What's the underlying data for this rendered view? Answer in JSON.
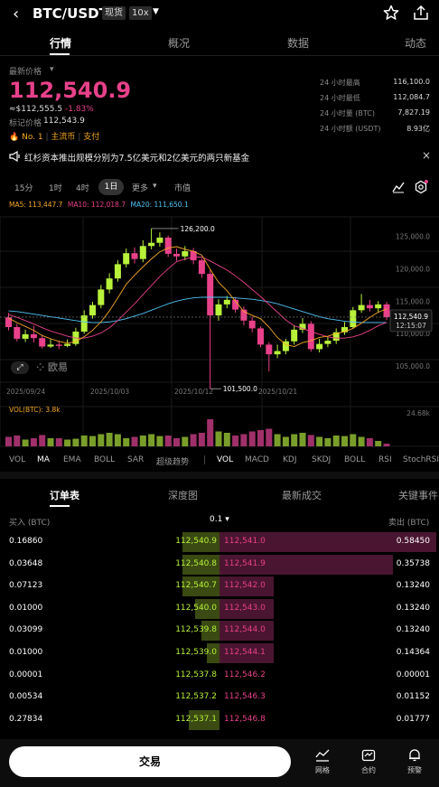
{
  "header": {
    "pair": "BTC/USDT",
    "spot_badge": "现货",
    "leverage_badge": "10x"
  },
  "tabs": [
    "行情",
    "概况",
    "数据",
    "动态"
  ],
  "price": {
    "label": "最新价格",
    "last": "112,540.9",
    "usd": "≈$112,555.5",
    "change": "-1.83%",
    "mark_label": "标记价格",
    "mark": "112,543.9",
    "tags": [
      "No. 1",
      "主流币",
      "支付"
    ]
  },
  "stats": [
    {
      "label": "24 小时最高",
      "value": "116,100.0"
    },
    {
      "label": "24 小时最低",
      "value": "112,084.7"
    },
    {
      "label": "24 小时量 (BTC)",
      "value": "7,827.19"
    },
    {
      "label": "24 小时额 (USDT)",
      "value": "8.93亿"
    }
  ],
  "news": "红杉资本推出规模分别为7.5亿美元和2亿美元的两只新基金",
  "timeframes": [
    "15分",
    "1时",
    "4时",
    "1日",
    "更多",
    "市值"
  ],
  "active_timeframe": "1日",
  "ma_line": {
    "ma5": "MA5: 113,447.7",
    "ma10": "MA10: 112,018.7",
    "ma20": "MA20: 111,650.1"
  },
  "chart_data": {
    "type": "candlestick",
    "y_ticks": [
      "125,000.0",
      "120,000.0",
      "115,000.0",
      "110,000.0",
      "105,000.0"
    ],
    "ylim": [
      102500,
      128000
    ],
    "x_ticks": [
      "2025/09/24",
      "2025/10/03",
      "2025/10/12",
      "2025/10/21"
    ],
    "high_annotation": "126,200.0",
    "low_annotation": "101,500.0",
    "current_price_tag": "112,540.9",
    "countdown": "12:15:07",
    "candles": [
      {
        "o": 112500,
        "c": 111000,
        "h": 113200,
        "l": 110500
      },
      {
        "o": 111000,
        "c": 109200,
        "h": 111500,
        "l": 108800
      },
      {
        "o": 109200,
        "c": 109900,
        "h": 110600,
        "l": 108700
      },
      {
        "o": 109900,
        "c": 109300,
        "h": 111200,
        "l": 108600
      },
      {
        "o": 109300,
        "c": 108000,
        "h": 109800,
        "l": 107700
      },
      {
        "o": 108000,
        "c": 108300,
        "h": 109100,
        "l": 107800
      },
      {
        "o": 108300,
        "c": 108100,
        "h": 108900,
        "l": 107600
      },
      {
        "o": 108100,
        "c": 108400,
        "h": 109100,
        "l": 107900
      },
      {
        "o": 108400,
        "c": 110300,
        "h": 110900,
        "l": 108100
      },
      {
        "o": 110300,
        "c": 112800,
        "h": 113600,
        "l": 110000
      },
      {
        "o": 112800,
        "c": 114400,
        "h": 114900,
        "l": 112300
      },
      {
        "o": 114400,
        "c": 116800,
        "h": 117500,
        "l": 113900
      },
      {
        "o": 116800,
        "c": 118500,
        "h": 119300,
        "l": 116200
      },
      {
        "o": 118500,
        "c": 120700,
        "h": 121300,
        "l": 118000
      },
      {
        "o": 120700,
        "c": 122400,
        "h": 123100,
        "l": 120200
      },
      {
        "o": 122400,
        "c": 121500,
        "h": 123300,
        "l": 120800
      },
      {
        "o": 121500,
        "c": 123500,
        "h": 124400,
        "l": 121000
      },
      {
        "o": 123500,
        "c": 124000,
        "h": 126200,
        "l": 123000
      },
      {
        "o": 124000,
        "c": 124800,
        "h": 125600,
        "l": 123400
      },
      {
        "o": 124800,
        "c": 122300,
        "h": 125100,
        "l": 121800
      },
      {
        "o": 122300,
        "c": 121900,
        "h": 123100,
        "l": 121200
      },
      {
        "o": 121900,
        "c": 122700,
        "h": 123500,
        "l": 121300
      },
      {
        "o": 122700,
        "c": 121300,
        "h": 123200,
        "l": 120700
      },
      {
        "o": 121300,
        "c": 119200,
        "h": 121600,
        "l": 118600
      },
      {
        "o": 119200,
        "c": 112800,
        "h": 119800,
        "l": 101500
      },
      {
        "o": 112800,
        "c": 114500,
        "h": 115300,
        "l": 112000
      },
      {
        "o": 114500,
        "c": 115200,
        "h": 115800,
        "l": 113900
      },
      {
        "o": 115200,
        "c": 113700,
        "h": 115600,
        "l": 113200
      },
      {
        "o": 113700,
        "c": 112000,
        "h": 114200,
        "l": 111300
      },
      {
        "o": 112000,
        "c": 110800,
        "h": 112600,
        "l": 110200
      },
      {
        "o": 110800,
        "c": 108300,
        "h": 111100,
        "l": 107900
      },
      {
        "o": 108300,
        "c": 106800,
        "h": 108700,
        "l": 104200
      },
      {
        "o": 106800,
        "c": 107300,
        "h": 108300,
        "l": 106200
      },
      {
        "o": 107300,
        "c": 108800,
        "h": 109200,
        "l": 106800
      },
      {
        "o": 108800,
        "c": 110600,
        "h": 111300,
        "l": 108300
      },
      {
        "o": 110600,
        "c": 111500,
        "h": 112400,
        "l": 110100
      },
      {
        "o": 111500,
        "c": 107600,
        "h": 111900,
        "l": 107200
      },
      {
        "o": 107600,
        "c": 108400,
        "h": 109200,
        "l": 107100
      },
      {
        "o": 108400,
        "c": 108900,
        "h": 109600,
        "l": 107900
      },
      {
        "o": 108900,
        "c": 110200,
        "h": 110800,
        "l": 108400
      },
      {
        "o": 110200,
        "c": 111000,
        "h": 111800,
        "l": 109800
      },
      {
        "o": 111000,
        "c": 113600,
        "h": 114100,
        "l": 110700
      },
      {
        "o": 113600,
        "c": 114400,
        "h": 116100,
        "l": 113200
      },
      {
        "o": 114400,
        "c": 113900,
        "h": 115200,
        "l": 113400
      },
      {
        "o": 113900,
        "c": 114500,
        "h": 115000,
        "l": 113200
      },
      {
        "o": 114500,
        "c": 112540,
        "h": 114900,
        "l": 112084
      }
    ],
    "ma5": [
      112400,
      111700,
      111100,
      110500,
      109700,
      109200,
      108800,
      108500,
      108800,
      109500,
      110500,
      111800,
      113500,
      115500,
      117600,
      119000,
      120300,
      121500,
      122600,
      123200,
      123400,
      123000,
      122700,
      122100,
      119900,
      117900,
      116600,
      115000,
      113400,
      112800,
      112300,
      111000,
      109400,
      108300,
      108000,
      108600,
      108900,
      109400,
      109600,
      110000,
      110300,
      110800,
      111600,
      112500,
      113300,
      113800
    ],
    "ma10": [
      112900,
      112500,
      112000,
      111500,
      110900,
      110400,
      110000,
      109600,
      109300,
      109300,
      109600,
      110100,
      110900,
      112000,
      113300,
      114600,
      116000,
      117400,
      118800,
      120000,
      121100,
      121500,
      121800,
      121800,
      121200,
      120500,
      119800,
      118900,
      117900,
      116800,
      115700,
      114500,
      113300,
      112100,
      111200,
      110800,
      110300,
      109900,
      109500,
      109300,
      109300,
      109500,
      109900,
      110500,
      111200,
      111700
    ],
    "ma20": [
      113500,
      113400,
      113200,
      113000,
      112800,
      112600,
      112400,
      112200,
      112000,
      111800,
      111700,
      111700,
      111800,
      112000,
      112300,
      112700,
      113100,
      113600,
      114100,
      114600,
      115000,
      115300,
      115500,
      115600,
      115600,
      115600,
      115600,
      115500,
      115400,
      115300,
      115100,
      114900,
      114600,
      114200,
      113800,
      113400,
      113000,
      112600,
      112300,
      112100,
      111900,
      111800,
      111700,
      111700,
      111700,
      111700
    ],
    "vol_label": "VOL(BTC): 3.8k",
    "vol_tick": "24.68k",
    "volume": [
      0.35,
      0.4,
      0.25,
      0.3,
      0.42,
      0.3,
      0.3,
      0.25,
      0.28,
      0.4,
      0.38,
      0.45,
      0.5,
      0.45,
      0.3,
      0.35,
      0.4,
      0.45,
      0.38,
      0.4,
      0.3,
      0.35,
      0.45,
      0.5,
      1.0,
      0.55,
      0.5,
      0.4,
      0.45,
      0.55,
      0.6,
      0.65,
      0.45,
      0.35,
      0.45,
      0.5,
      0.42,
      0.35,
      0.3,
      0.4,
      0.38,
      0.45,
      0.35,
      0.3,
      0.2,
      0.1
    ]
  },
  "indicator_tabs_main": [
    "VOL",
    "MA",
    "EMA",
    "BOLL",
    "SAR",
    "超级趋势"
  ],
  "indicator_tabs_sub": [
    "VOL",
    "MACD",
    "KDJ",
    "SKDJ",
    "BOLL",
    "RSI",
    "StochRSI"
  ],
  "watermark": "欧易",
  "orderbook": {
    "tabs": [
      "订单表",
      "深度图",
      "最新成交",
      "关键事件"
    ],
    "buy_label": "买入 (BTC)",
    "sell_label": "卖出 (BTC)",
    "precision": "0.1",
    "rows": [
      {
        "bq": "0.16860",
        "bp": "112,540.9",
        "sp": "112,541.0",
        "sq": "0.58450",
        "bd": 0.6,
        "sd": 1.0
      },
      {
        "bq": "0.03648",
        "bp": "112,540.8",
        "sp": "112,541.9",
        "sq": "0.35738",
        "bd": 0.6,
        "sd": 0.8
      },
      {
        "bq": "0.07123",
        "bp": "112,540.7",
        "sp": "112,542.0",
        "sq": "0.13240",
        "bd": 0.6,
        "sd": 0.25
      },
      {
        "bq": "0.01000",
        "bp": "112,540.0",
        "sp": "112,543.0",
        "sq": "0.13240",
        "bd": 0.4,
        "sd": 0.25
      },
      {
        "bq": "0.03099",
        "bp": "112,539.8",
        "sp": "112,544.0",
        "sq": "0.13240",
        "bd": 0.3,
        "sd": 0.25
      },
      {
        "bq": "0.01000",
        "bp": "112,539.0",
        "sp": "112,544.1",
        "sq": "0.14364",
        "bd": 0.2,
        "sd": 0.25
      },
      {
        "bq": "0.00001",
        "bp": "112,537.8",
        "sp": "112,546.2",
        "sq": "0.00001",
        "bd": 0.0,
        "sd": 0.0
      },
      {
        "bq": "0.00534",
        "bp": "112,537.2",
        "sp": "112,546.3",
        "sq": "0.01152",
        "bd": 0.0,
        "sd": 0.0
      },
      {
        "bq": "0.27834",
        "bp": "112,537.1",
        "sp": "112,546.8",
        "sq": "0.01777",
        "bd": 0.5,
        "sd": 0.0
      }
    ]
  },
  "bottom": {
    "trade": "交易",
    "grid": "网格",
    "contract": "合约",
    "alert": "预警"
  },
  "colors": {
    "up": "#b8f23a",
    "down": "#e8418a",
    "ma5": "#f5a623",
    "ma10": "#e8418a",
    "ma20": "#4fc3f7"
  }
}
